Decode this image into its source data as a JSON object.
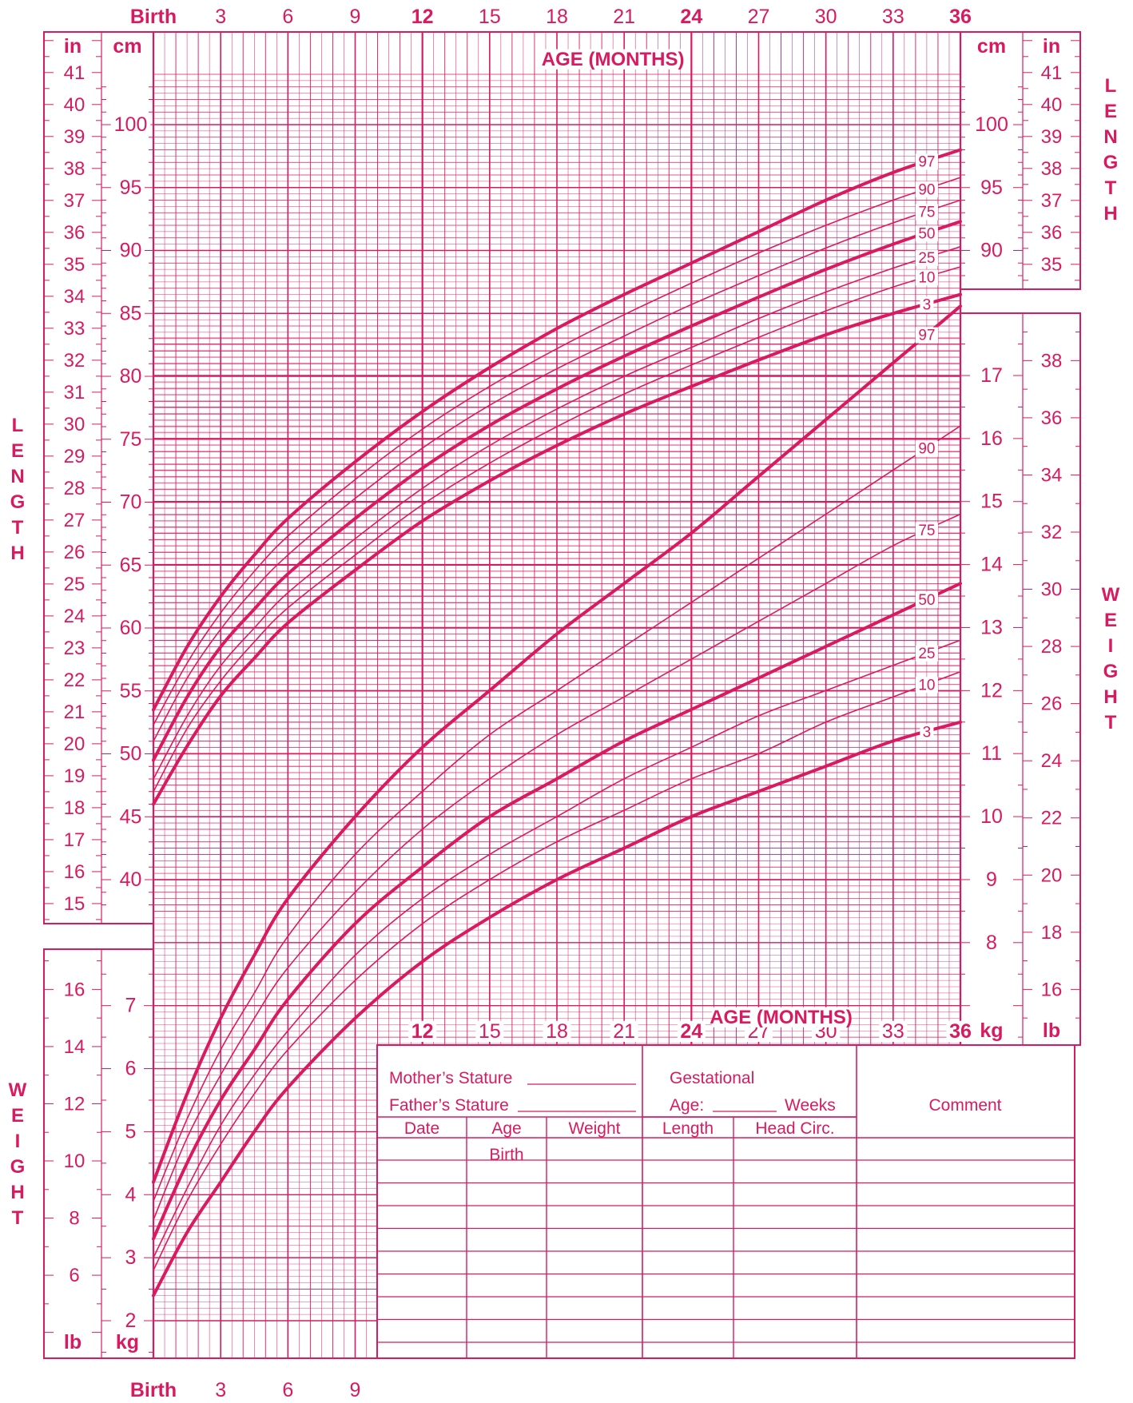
{
  "colors": {
    "ink": "#d81b60",
    "paper": "#ffffff"
  },
  "chart_data": {
    "type": "line",
    "title": "",
    "x_label": "AGE (MONTHS)",
    "x_ticks": [
      "Birth",
      "3",
      "6",
      "9",
      "12",
      "15",
      "18",
      "21",
      "24",
      "27",
      "30",
      "33",
      "36"
    ],
    "x_range": [
      0,
      36
    ],
    "length_axis": {
      "label": "LENGTH",
      "cm_unit": "cm",
      "in_unit": "in",
      "cm_range": [
        37.5,
        104
      ],
      "left_cm_ticks": [
        40,
        45,
        50,
        55,
        60,
        65,
        70,
        75,
        80,
        85,
        90,
        95,
        100
      ],
      "left_in_ticks": [
        15,
        16,
        17,
        18,
        19,
        20,
        21,
        22,
        23,
        24,
        25,
        26,
        27,
        28,
        29,
        30,
        31,
        32,
        33,
        34,
        35,
        36,
        37,
        38,
        39,
        40,
        41
      ],
      "right_cm_ticks": [
        90,
        95,
        100
      ],
      "right_in_ticks": [
        35,
        36,
        37,
        38,
        39,
        40,
        41
      ]
    },
    "weight_axis": {
      "label": "WEIGHT",
      "kg_unit": "kg",
      "lb_unit": "lb",
      "left_kg_ticks": [
        2,
        3,
        4,
        5,
        6,
        7
      ],
      "left_lb_ticks": [
        6,
        8,
        10,
        12,
        14,
        16
      ],
      "right_kg_ticks": [
        8,
        9,
        10,
        11,
        12,
        13,
        14,
        15,
        16,
        17
      ],
      "right_lb_ticks": [
        16,
        18,
        20,
        22,
        24,
        26,
        28,
        30,
        32,
        34,
        36,
        38
      ]
    },
    "x": [
      0,
      1.5,
      3,
      4.5,
      6,
      9,
      12,
      15,
      18,
      21,
      24,
      27,
      30,
      33,
      36
    ],
    "length_series": [
      {
        "name": "97",
        "values": [
          53.5,
          58.5,
          62.5,
          65.8,
          68.7,
          73.2,
          77.2,
          80.7,
          83.8,
          86.5,
          89.0,
          91.5,
          94.0,
          96.2,
          98.0
        ]
      },
      {
        "name": "90",
        "values": [
          52.3,
          57.2,
          61.2,
          64.5,
          67.3,
          71.8,
          75.8,
          79.2,
          82.2,
          84.9,
          87.4,
          89.8,
          92.0,
          94.0,
          95.8
        ]
      },
      {
        "name": "75",
        "values": [
          51.0,
          56.0,
          59.9,
          63.1,
          65.8,
          70.3,
          74.3,
          77.7,
          80.6,
          83.2,
          85.7,
          88.0,
          90.2,
          92.2,
          94.0
        ]
      },
      {
        "name": "50",
        "values": [
          49.5,
          54.5,
          58.5,
          61.5,
          64.3,
          68.7,
          72.7,
          76.1,
          79.0,
          81.6,
          84.0,
          86.3,
          88.5,
          90.5,
          92.3
        ]
      },
      {
        "name": "25",
        "values": [
          48.0,
          53.0,
          57.0,
          60.0,
          62.8,
          67.1,
          71.1,
          74.5,
          77.4,
          80.0,
          82.3,
          84.6,
          86.7,
          88.6,
          90.3
        ]
      },
      {
        "name": "10",
        "values": [
          47.0,
          52.0,
          55.8,
          58.9,
          61.6,
          65.8,
          69.8,
          73.1,
          76.0,
          78.6,
          80.9,
          83.1,
          85.2,
          87.1,
          88.7
        ]
      },
      {
        "name": "3",
        "values": [
          46.0,
          50.6,
          54.6,
          57.6,
          60.4,
          64.6,
          68.5,
          71.7,
          74.5,
          77.0,
          79.2,
          81.3,
          83.3,
          85.0,
          86.5
        ]
      }
    ],
    "weight_series": [
      {
        "name": "97",
        "values": [
          4.2,
          5.6,
          6.8,
          7.8,
          8.7,
          10.0,
          11.1,
          12.0,
          12.9,
          13.7,
          14.5,
          15.4,
          16.3,
          17.2,
          18.1
        ]
      },
      {
        "name": "90",
        "values": [
          3.9,
          5.2,
          6.3,
          7.2,
          8.1,
          9.4,
          10.4,
          11.3,
          12.0,
          12.7,
          13.4,
          14.1,
          14.8,
          15.5,
          16.2
        ]
      },
      {
        "name": "75",
        "values": [
          3.6,
          4.9,
          5.9,
          6.8,
          7.6,
          8.8,
          9.8,
          10.6,
          11.3,
          11.9,
          12.5,
          13.1,
          13.7,
          14.3,
          14.8
        ]
      },
      {
        "name": "50",
        "values": [
          3.3,
          4.5,
          5.5,
          6.3,
          7.1,
          8.3,
          9.2,
          10.0,
          10.6,
          11.2,
          11.7,
          12.2,
          12.7,
          13.2,
          13.7
        ]
      },
      {
        "name": "25",
        "values": [
          3.0,
          4.1,
          5.1,
          5.9,
          6.6,
          7.8,
          8.7,
          9.4,
          10.0,
          10.6,
          11.1,
          11.6,
          12.0,
          12.4,
          12.8
        ]
      },
      {
        "name": "10",
        "values": [
          2.8,
          3.9,
          4.8,
          5.6,
          6.3,
          7.4,
          8.3,
          9.0,
          9.6,
          10.1,
          10.6,
          11.0,
          11.5,
          11.9,
          12.3
        ]
      },
      {
        "name": "3",
        "values": [
          2.4,
          3.4,
          4.2,
          5.0,
          5.7,
          6.8,
          7.7,
          8.4,
          9.0,
          9.5,
          10.0,
          10.4,
          10.8,
          11.2,
          11.5
        ]
      }
    ]
  },
  "record_form": {
    "mothers_stature": "Mother’s Stature",
    "fathers_stature": "Father’s Stature",
    "gestational": "Gestational",
    "age_label": "Age:",
    "weeks": "Weeks",
    "comment": "Comment",
    "columns": [
      "Date",
      "Age",
      "Weight",
      "Length",
      "Head  Circ."
    ],
    "first_row_age": "Birth"
  }
}
